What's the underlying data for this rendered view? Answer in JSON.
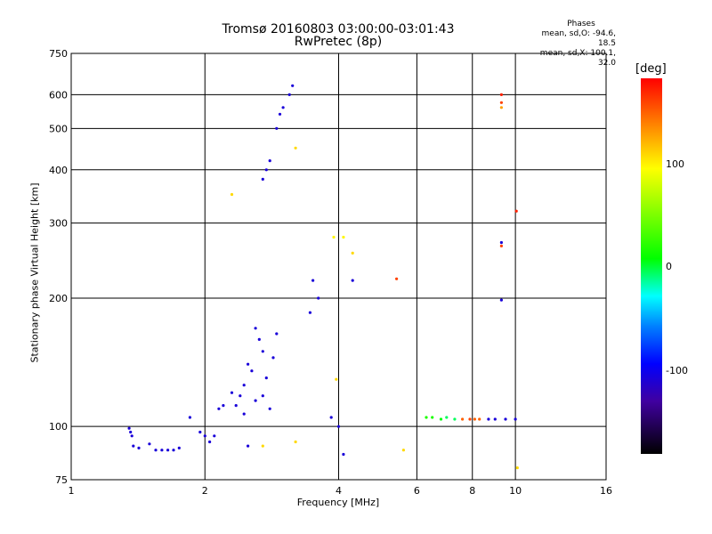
{
  "title": {
    "line1": "Tromsø 20160803 03:00:00-03:01:43",
    "line2": "RwPretec (8p)"
  },
  "phases": {
    "heading": "Phases",
    "line_o": "mean, sd,O: -94.6, 18.5",
    "line_x": "mean, sd,X: 100.1, 32.0"
  },
  "colorbar": {
    "unit": "[deg]",
    "ticks": [
      "100",
      "0",
      "-100"
    ]
  },
  "chart_data": {
    "type": "scatter",
    "title": "Tromsø 20160803 03:00:00-03:01:43",
    "subtitle": "RwPretec (8p)",
    "xlabel": "Frequency [MHz]",
    "ylabel": "Stationary phase Virtual Height [km]",
    "x_scale": "log2",
    "y_scale": "log",
    "xlim": [
      1,
      16
    ],
    "ylim": [
      75,
      750
    ],
    "x_ticks": [
      1,
      2,
      4,
      6,
      8,
      10,
      16
    ],
    "x_tick_labels": [
      "1",
      "2",
      "4",
      "6",
      "8",
      "10",
      "16"
    ],
    "y_ticks": [
      75,
      100,
      200,
      300,
      400,
      500,
      600,
      750
    ],
    "y_tick_labels": [
      "75",
      "100",
      "200",
      "300",
      "400",
      "500",
      "600",
      "750"
    ],
    "grid": true,
    "color_scale": {
      "label": "[deg]",
      "range": [
        -180,
        180
      ],
      "ticks": [
        100,
        0,
        -100
      ]
    },
    "series": [
      {
        "points": [
          [
            1.35,
            99,
            -100
          ],
          [
            1.36,
            97,
            -100
          ],
          [
            1.37,
            95,
            -100
          ],
          [
            1.38,
            90,
            -100
          ],
          [
            1.42,
            89,
            -100
          ],
          [
            1.5,
            91,
            -100
          ],
          [
            1.55,
            88,
            -100
          ],
          [
            1.6,
            88,
            -100
          ],
          [
            1.65,
            88,
            -100
          ],
          [
            1.7,
            88,
            -100
          ],
          [
            1.75,
            89,
            -100
          ],
          [
            1.85,
            105,
            -100
          ],
          [
            1.95,
            97,
            -100
          ],
          [
            2.0,
            95,
            -100
          ],
          [
            2.05,
            92,
            -100
          ],
          [
            2.1,
            95,
            -100
          ],
          [
            2.15,
            110,
            -100
          ],
          [
            2.2,
            112,
            -100
          ],
          [
            2.3,
            120,
            -100
          ],
          [
            2.35,
            112,
            -100
          ],
          [
            2.4,
            118,
            -100
          ],
          [
            2.45,
            125,
            -100
          ],
          [
            2.5,
            140,
            -100
          ],
          [
            2.55,
            135,
            -100
          ],
          [
            2.6,
            170,
            -100
          ],
          [
            2.65,
            160,
            -100
          ],
          [
            2.7,
            150,
            -100
          ],
          [
            2.75,
            130,
            -100
          ],
          [
            2.8,
            110,
            -100
          ],
          [
            2.85,
            145,
            -100
          ],
          [
            2.9,
            165,
            -100
          ],
          [
            2.6,
            115,
            -100
          ],
          [
            2.7,
            118,
            -100
          ],
          [
            2.45,
            107,
            -100
          ],
          [
            2.5,
            90,
            -100
          ],
          [
            2.7,
            380,
            -100
          ],
          [
            2.75,
            400,
            -100
          ],
          [
            2.8,
            420,
            -100
          ],
          [
            2.9,
            500,
            -100
          ],
          [
            2.95,
            540,
            -100
          ],
          [
            3.0,
            560,
            -100
          ],
          [
            3.1,
            600,
            -100
          ],
          [
            3.15,
            630,
            -100
          ],
          [
            3.45,
            185,
            -100
          ],
          [
            3.5,
            220,
            -100
          ],
          [
            3.6,
            200,
            -100
          ],
          [
            3.85,
            105,
            -100
          ],
          [
            4.0,
            100,
            -100
          ],
          [
            4.1,
            86,
            -100
          ],
          [
            4.3,
            220,
            -100
          ],
          [
            9.3,
            198,
            -100
          ],
          [
            9.3,
            270,
            -100
          ],
          [
            8.7,
            104,
            -100
          ],
          [
            9.0,
            104,
            -100
          ],
          [
            9.5,
            104,
            -100
          ],
          [
            10.0,
            104,
            -100
          ]
        ]
      },
      {
        "points": [
          [
            6.3,
            105,
            30
          ],
          [
            6.5,
            105,
            30
          ],
          [
            6.8,
            104,
            20
          ],
          [
            7.0,
            105,
            10
          ],
          [
            7.3,
            104,
            10
          ],
          [
            7.6,
            104,
            150
          ],
          [
            7.9,
            104,
            160
          ],
          [
            8.1,
            104,
            150
          ],
          [
            8.3,
            104,
            150
          ],
          [
            9.3,
            600,
            170
          ],
          [
            9.3,
            575,
            160
          ],
          [
            9.3,
            560,
            130
          ],
          [
            9.3,
            265,
            160
          ],
          [
            10.05,
            320,
            170
          ],
          [
            5.4,
            222,
            160
          ],
          [
            3.9,
            278,
            100
          ],
          [
            4.1,
            278,
            100
          ],
          [
            4.3,
            255,
            110
          ],
          [
            3.95,
            129,
            110
          ],
          [
            2.3,
            350,
            110
          ],
          [
            2.7,
            90,
            110
          ],
          [
            3.2,
            92,
            110
          ],
          [
            3.2,
            450,
            110
          ],
          [
            5.6,
            88,
            110
          ],
          [
            10.1,
            80,
            110
          ]
        ]
      }
    ]
  }
}
